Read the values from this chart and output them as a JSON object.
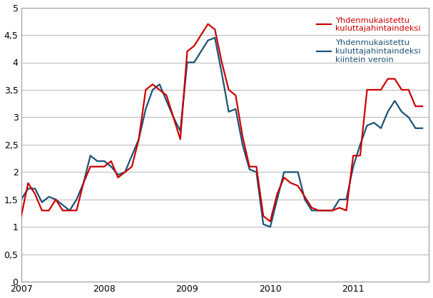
{
  "legend1": "Yhdenmukaistettu\nkuluttajahintaindeksi",
  "legend2": "Yhdenmukaistettu\nkuluttajahintaindeksi\nkiintein veroin",
  "color1": "#cc0000",
  "color2": "#1a5276",
  "linewidth": 1.6,
  "ylim": [
    0,
    5
  ],
  "yticks": [
    0,
    0.5,
    1.0,
    1.5,
    2.0,
    2.5,
    3.0,
    3.5,
    4.0,
    4.5,
    5.0
  ],
  "ytick_labels": [
    "0",
    "0,5",
    "1",
    "1,5",
    "2",
    "2,5",
    "3",
    "3,5",
    "4",
    "4,5",
    "5"
  ],
  "xtick_labels": [
    "2007",
    "2008",
    "2009",
    "2010",
    "2011"
  ],
  "background_color": "#ffffff",
  "hicp": [
    1.2,
    1.8,
    1.6,
    1.3,
    1.3,
    1.5,
    1.3,
    1.3,
    1.3,
    1.8,
    2.1,
    2.1,
    2.1,
    2.2,
    1.9,
    2.0,
    2.1,
    2.6,
    3.5,
    3.6,
    3.5,
    3.4,
    3.0,
    2.6,
    4.2,
    4.3,
    4.5,
    4.7,
    4.6,
    4.0,
    3.5,
    3.4,
    2.65,
    2.1,
    2.1,
    1.2,
    1.1,
    1.6,
    1.9,
    1.8,
    1.75,
    1.55,
    1.35,
    1.3,
    1.3,
    1.3,
    1.35,
    1.3,
    2.3,
    2.3,
    3.5,
    3.5,
    3.5,
    3.7,
    3.7,
    3.5,
    3.5,
    3.2,
    3.2
  ],
  "hicp_ct": [
    1.5,
    1.7,
    1.7,
    1.45,
    1.55,
    1.5,
    1.4,
    1.3,
    1.5,
    1.8,
    2.3,
    2.2,
    2.2,
    2.1,
    1.95,
    2.0,
    2.3,
    2.6,
    3.15,
    3.5,
    3.6,
    3.3,
    3.0,
    2.75,
    4.0,
    4.0,
    4.2,
    4.4,
    4.45,
    3.8,
    3.1,
    3.15,
    2.5,
    2.05,
    2.0,
    1.05,
    1.0,
    1.5,
    2.0,
    2.0,
    2.0,
    1.5,
    1.3,
    1.3,
    1.3,
    1.3,
    1.5,
    1.5,
    2.1,
    2.5,
    2.85,
    2.9,
    2.8,
    3.1,
    3.3,
    3.1,
    3.0,
    2.8,
    2.8
  ],
  "n_months": 59,
  "start_year": 2007,
  "start_month": 1
}
